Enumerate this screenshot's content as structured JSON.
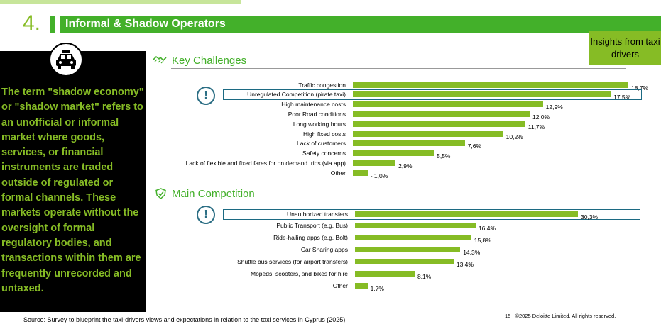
{
  "header": {
    "number": "4.",
    "title": "Informal & Shadow Operators",
    "badge": "Insights from taxi drivers"
  },
  "side_panel": {
    "icon": "taxi-icon",
    "text": "The term \"shadow economy\" or \"shadow market\" refers to an unofficial or informal market where goods, services, or financial instruments are traded outside of regulated or formal channels. These markets operate without the oversight of formal regulatory bodies, and transactions within them are frequently unrecorded and untaxed."
  },
  "colors": {
    "brand_green": "#86bc25",
    "dark_green": "#43b02a",
    "highlight_blue": "#1c6a83"
  },
  "chart_data": [
    {
      "type": "bar",
      "orientation": "horizontal",
      "title": "Key Challenges",
      "icon": "handshake-icon",
      "categories": [
        "Traffic congestion",
        "Unregulated Competition (pirate taxi)",
        "High maintenance costs",
        "Poor Road conditions",
        "Long working hours",
        "High fixed costs",
        "Lack of customers",
        "Safety concerns",
        "Lack of flexible and fixed fares for on demand trips (via app)",
        "Other"
      ],
      "values": [
        18.7,
        17.5,
        12.9,
        12.0,
        11.7,
        10.2,
        7.6,
        5.5,
        2.9,
        1.0
      ],
      "labels": [
        "18,7%",
        "17,5%",
        "12,9%",
        "12,0%",
        "11,7%",
        "10,2%",
        "7,6%",
        "5,5%",
        "2,9%",
        "1,0%"
      ],
      "highlighted": "Unregulated Competition (pirate taxi)",
      "xlim": [
        0,
        18.7
      ]
    },
    {
      "type": "bar",
      "orientation": "horizontal",
      "title": "Main Competition",
      "icon": "shield-check-icon",
      "categories": [
        "Unauthorized transfers",
        "Public Transport (e.g. Bus)",
        "Ride-hailing apps (e.g. Bolt)",
        "Car Sharing apps",
        "Shuttle bus services (for airport transfers)",
        "Mopeds, scooters, and bikes for hire",
        "Other"
      ],
      "values": [
        30.3,
        16.4,
        15.8,
        14.3,
        13.4,
        8.1,
        1.7
      ],
      "labels": [
        "30,3%",
        "16,4%",
        "15,8%",
        "14,3%",
        "13,4%",
        "8,1%",
        "1,7%"
      ],
      "highlighted": "Unauthorized transfers",
      "xlim": [
        0,
        30.3
      ]
    }
  ],
  "footer": {
    "source": "Source: Survey to blueprint the taxi-drivers views and expectations in relation to the taxi services in Cyprus (2025)",
    "page": "15 | ©2025 Deloitte Limited. All rights reserved."
  }
}
